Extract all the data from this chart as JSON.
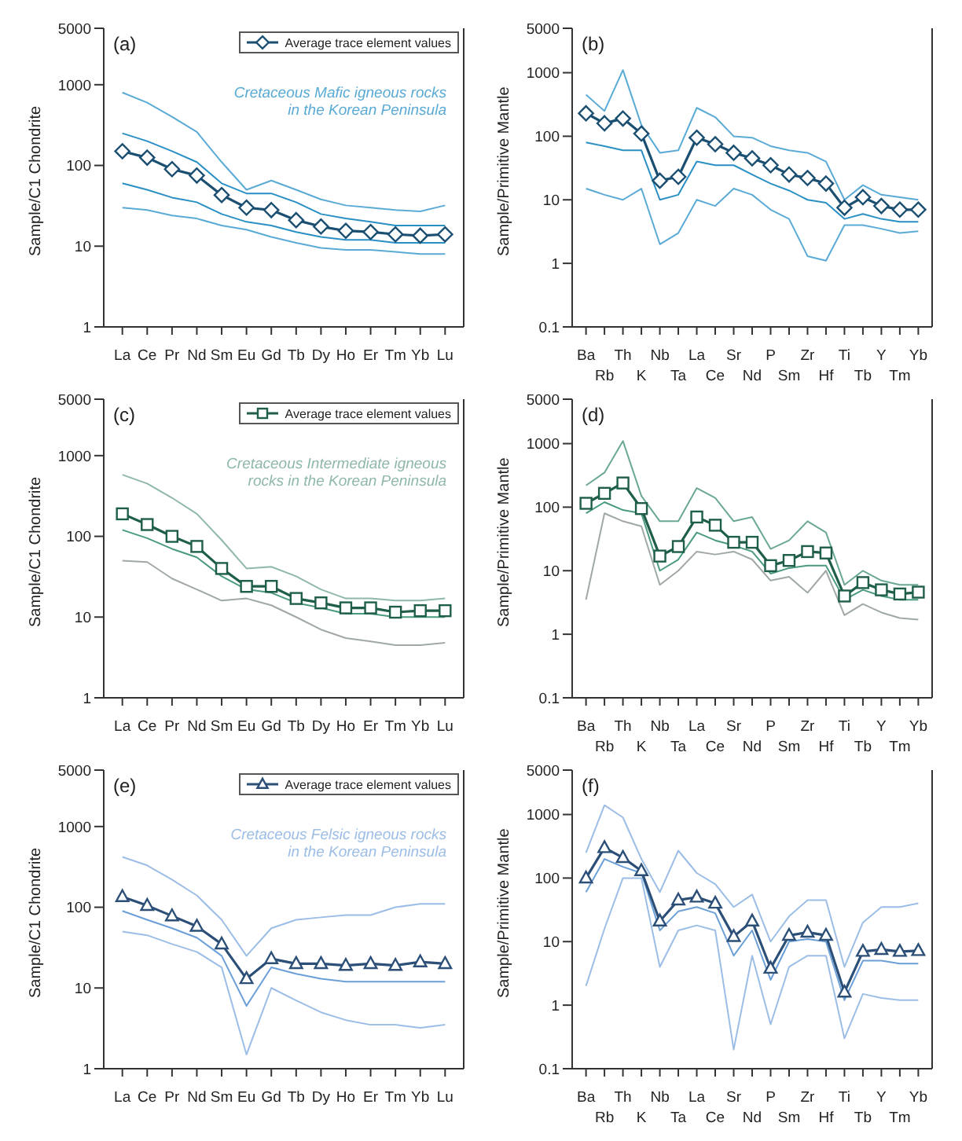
{
  "chart_data": [
    {
      "type": "line",
      "ylabel": "Sample/C1 Chondrite",
      "log": true,
      "legend": "top right",
      "ylim": [
        1,
        5000
      ],
      "yticks": [
        1,
        10,
        100,
        1000,
        5000
      ],
      "annotations": [
        "(a)",
        "Cretaceous Mafic igneous rocks in the Korean Peninsula"
      ],
      "categories": [
        "La",
        "Ce",
        "Pr",
        "Nd",
        "Sm",
        "Eu",
        "Gd",
        "Tb",
        "Dy",
        "Ho",
        "Er",
        "Tm",
        "Yb",
        "Lu"
      ],
      "series": [
        {
          "color": "#5aaad6",
          "marker": "none",
          "values": [
            800,
            600,
            400,
            260,
            110,
            50,
            65,
            50,
            38,
            32,
            30,
            28,
            27,
            32
          ]
        },
        {
          "color": "#2a8fc4",
          "marker": "none",
          "values": [
            250,
            200,
            150,
            110,
            60,
            45,
            45,
            35,
            25,
            22,
            20,
            18,
            18,
            18
          ]
        },
        {
          "color": "#2a8fc4",
          "marker": "none",
          "values": [
            60,
            50,
            40,
            35,
            25,
            20,
            18,
            15,
            13,
            12,
            12,
            11,
            11,
            11
          ]
        },
        {
          "color": "#5aaad6",
          "marker": "none",
          "values": [
            30,
            28,
            24,
            22,
            18,
            16,
            13,
            11,
            9.5,
            9,
            9,
            8.5,
            8,
            8
          ]
        },
        {
          "name": "Average trace element values",
          "color": "#1b4f72",
          "marker": "diamond",
          "values": [
            150,
            125,
            90,
            75,
            43,
            30,
            28,
            21,
            17.5,
            15.5,
            15,
            14,
            13.5,
            14
          ]
        }
      ]
    },
    {
      "type": "line",
      "ylabel": "Sample/Primitive Mantle",
      "log": true,
      "ylim": [
        0.1,
        5000
      ],
      "yticks": [
        0.1,
        1,
        10,
        100,
        1000,
        5000
      ],
      "annotations": [
        "(b)"
      ],
      "categories": [
        "Ba",
        "Rb",
        "Th",
        "K",
        "Nb",
        "Ta",
        "La",
        "Ce",
        "Sr",
        "Nd",
        "P",
        "Sm",
        "Zr",
        "Hf",
        "Ti",
        "Tb",
        "Y",
        "Tm",
        "Yb"
      ],
      "series": [
        {
          "color": "#5aaad6",
          "marker": "none",
          "values": [
            450,
            250,
            1100,
            150,
            55,
            60,
            280,
            200,
            100,
            95,
            70,
            60,
            55,
            40,
            10,
            17,
            12,
            11,
            10
          ]
        },
        {
          "color": "#2a8fc4",
          "marker": "none",
          "values": [
            80,
            70,
            60,
            60,
            10,
            12,
            40,
            35,
            35,
            25,
            18,
            14,
            10,
            9,
            5,
            6,
            5,
            4.5,
            4.5
          ]
        },
        {
          "color": "#5aaad6",
          "marker": "none",
          "values": [
            15,
            12,
            10,
            15,
            2,
            3,
            10,
            8,
            15,
            12,
            7,
            5,
            1.3,
            1.1,
            4,
            4,
            3.5,
            3,
            3.2
          ]
        },
        {
          "color": "#1b4f72",
          "marker": "diamond",
          "values": [
            230,
            160,
            190,
            110,
            20,
            23,
            95,
            75,
            55,
            45,
            35,
            25,
            22,
            18,
            7.5,
            11,
            8,
            7,
            7
          ]
        }
      ]
    },
    {
      "type": "line",
      "ylabel": "Sample/C1 Chondrite",
      "log": true,
      "legend": "top right",
      "ylim": [
        1,
        5000
      ],
      "yticks": [
        1,
        10,
        100,
        1000,
        5000
      ],
      "annotations": [
        "(c)",
        "Cretaceous Intermediate igneous rocks in the Korean Peninsula"
      ],
      "categories": [
        "La",
        "Ce",
        "Pr",
        "Nd",
        "Sm",
        "Eu",
        "Gd",
        "Tb",
        "Dy",
        "Ho",
        "Er",
        "Tm",
        "Yb",
        "Lu"
      ],
      "series": [
        {
          "color": "#8fb8aa",
          "marker": "none",
          "values": [
            580,
            450,
            300,
            190,
            90,
            40,
            42,
            32,
            22,
            17,
            17,
            16,
            16,
            17
          ]
        },
        {
          "color": "#4a9a80",
          "marker": "none",
          "values": [
            120,
            95,
            70,
            55,
            32,
            22,
            20,
            15,
            13,
            11,
            11,
            10,
            10,
            10
          ]
        },
        {
          "color": "#a0a8a6",
          "marker": "none",
          "values": [
            50,
            48,
            30,
            22,
            16,
            17,
            14,
            10,
            7,
            5.5,
            5,
            4.5,
            4.5,
            4.8
          ]
        },
        {
          "name": "Average trace element values",
          "color": "#1e5e4a",
          "marker": "square",
          "values": [
            190,
            140,
            100,
            75,
            40,
            24,
            24,
            17,
            15,
            13,
            13,
            11.5,
            12,
            12
          ]
        }
      ]
    },
    {
      "type": "line",
      "ylabel": "Sample/Primitive Mantle",
      "log": true,
      "ylim": [
        0.1,
        5000
      ],
      "yticks": [
        0.1,
        1,
        10,
        100,
        1000,
        5000
      ],
      "annotations": [
        "(d)"
      ],
      "categories": [
        "Ba",
        "Rb",
        "Th",
        "K",
        "Nb",
        "Ta",
        "La",
        "Ce",
        "Sr",
        "Nd",
        "P",
        "Sm",
        "Zr",
        "Hf",
        "Ti",
        "Tb",
        "Y",
        "Tm",
        "Yb"
      ],
      "series": [
        {
          "color": "#6aa894",
          "marker": "none",
          "values": [
            220,
            350,
            1100,
            150,
            60,
            60,
            200,
            140,
            60,
            70,
            22,
            30,
            60,
            40,
            6,
            10,
            7,
            6,
            6
          ]
        },
        {
          "color": "#4a9a80",
          "marker": "none",
          "values": [
            80,
            120,
            90,
            80,
            10,
            15,
            40,
            30,
            25,
            20,
            9,
            11,
            12,
            12,
            3.5,
            5,
            4,
            3.5,
            3.5
          ]
        },
        {
          "color": "#a0a8a6",
          "marker": "none",
          "values": [
            3.5,
            80,
            60,
            50,
            6,
            10,
            20,
            18,
            20,
            15,
            7,
            8,
            4.5,
            10,
            2,
            3,
            2.2,
            1.8,
            1.7
          ]
        },
        {
          "color": "#1e5e4a",
          "marker": "square",
          "values": [
            115,
            165,
            240,
            95,
            17,
            24,
            70,
            52,
            28,
            28,
            12,
            14.5,
            20,
            19,
            4,
            6.5,
            5,
            4.3,
            4.6
          ]
        }
      ]
    },
    {
      "type": "line",
      "ylabel": "Sample/C1 Chondrite",
      "log": true,
      "legend": "top right",
      "ylim": [
        1,
        5000
      ],
      "yticks": [
        1,
        10,
        100,
        1000,
        5000
      ],
      "annotations": [
        "(e)",
        "Cretaceous Felsic igneous rocks in the Korean Peninsula"
      ],
      "categories": [
        "La",
        "Ce",
        "Pr",
        "Nd",
        "Sm",
        "Eu",
        "Gd",
        "Tb",
        "Dy",
        "Ho",
        "Er",
        "Tm",
        "Yb",
        "Lu"
      ],
      "series": [
        {
          "color": "#9cbde6",
          "marker": "none",
          "values": [
            420,
            330,
            220,
            140,
            70,
            25,
            55,
            70,
            75,
            80,
            80,
            100,
            110,
            110
          ]
        },
        {
          "color": "#6a9fd8",
          "marker": "none",
          "values": [
            90,
            70,
            55,
            42,
            25,
            6,
            18,
            15,
            13,
            12,
            12,
            12,
            12,
            12
          ]
        },
        {
          "color": "#9cbde6",
          "marker": "none",
          "values": [
            50,
            45,
            35,
            28,
            18,
            1.5,
            10,
            7,
            5,
            4,
            3.5,
            3.5,
            3.2,
            3.5
          ]
        },
        {
          "name": "Average trace element values",
          "color": "#2c4f78",
          "marker": "triangle",
          "values": [
            135,
            105,
            78,
            58,
            35,
            13,
            23,
            20,
            20,
            19,
            20,
            19,
            21,
            20
          ]
        }
      ]
    },
    {
      "type": "line",
      "ylabel": "Sample/Primitive Mantle",
      "log": true,
      "ylim": [
        0.1,
        5000
      ],
      "yticks": [
        0.1,
        1,
        10,
        100,
        1000,
        5000
      ],
      "annotations": [
        "(f)"
      ],
      "categories": [
        "Ba",
        "Rb",
        "Th",
        "K",
        "Nb",
        "Ta",
        "La",
        "Ce",
        "Sr",
        "Nd",
        "P",
        "Sm",
        "Zr",
        "Hf",
        "Ti",
        "Tb",
        "Y",
        "Tm",
        "Yb"
      ],
      "series": [
        {
          "color": "#9cbde6",
          "marker": "none",
          "values": [
            250,
            1400,
            900,
            200,
            60,
            270,
            120,
            80,
            35,
            55,
            10,
            25,
            45,
            45,
            4,
            20,
            35,
            35,
            40
          ]
        },
        {
          "color": "#6a9fd8",
          "marker": "none",
          "values": [
            60,
            200,
            150,
            120,
            15,
            30,
            35,
            28,
            6,
            15,
            2.5,
            10,
            11,
            10,
            1.2,
            5,
            5,
            4.5,
            4.5
          ]
        },
        {
          "color": "#9cbde6",
          "marker": "none",
          "values": [
            2,
            16,
            100,
            100,
            4,
            15,
            18,
            15,
            0.2,
            6,
            0.5,
            4,
            6,
            6,
            0.3,
            1.5,
            1.3,
            1.2,
            1.2
          ]
        },
        {
          "color": "#2c4f78",
          "marker": "triangle",
          "values": [
            100,
            300,
            210,
            130,
            21,
            45,
            50,
            40,
            12,
            21,
            3.8,
            12.5,
            14,
            12.5,
            1.6,
            7,
            7.5,
            7,
            7.2
          ]
        }
      ]
    }
  ]
}
